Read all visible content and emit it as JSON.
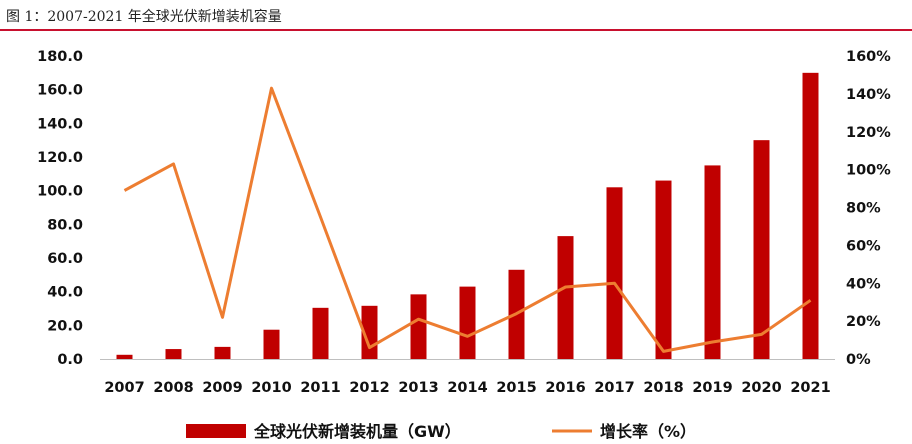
{
  "caption": "图 1：2007-2021 年全球光伏新增装机容量",
  "chart_data": {
    "type": "bar+line",
    "categories": [
      "2007",
      "2008",
      "2009",
      "2010",
      "2011",
      "2012",
      "2013",
      "2014",
      "2015",
      "2016",
      "2017",
      "2018",
      "2019",
      "2020",
      "2021"
    ],
    "series": [
      {
        "name": "全球光伏新增装机量（GW）",
        "kind": "bar",
        "axis": "left",
        "color": "#c00000",
        "values": [
          2.5,
          5.9,
          7.2,
          17.4,
          30.4,
          31.6,
          38.4,
          43.0,
          53.0,
          73.0,
          102.0,
          106.0,
          115.0,
          130.0,
          170.0
        ]
      },
      {
        "name": "增长率（%）",
        "kind": "line",
        "axis": "right",
        "color": "#ed7d31",
        "values": [
          89,
          103,
          22,
          143,
          75,
          6,
          21,
          12,
          24,
          38,
          40,
          4,
          9,
          13,
          31
        ]
      }
    ],
    "y_left": {
      "min": 0,
      "max": 180,
      "step": 20,
      "tick_labels": [
        "0.0",
        "20.0",
        "40.0",
        "60.0",
        "80.0",
        "100.0",
        "120.0",
        "140.0",
        "160.0",
        "180.0"
      ]
    },
    "y_right": {
      "min": 0,
      "max": 160,
      "step": 20,
      "tick_labels": [
        "0%",
        "20%",
        "40%",
        "60%",
        "80%",
        "100%",
        "120%",
        "140%",
        "160%"
      ]
    },
    "legend_position": "bottom",
    "grid": false
  }
}
